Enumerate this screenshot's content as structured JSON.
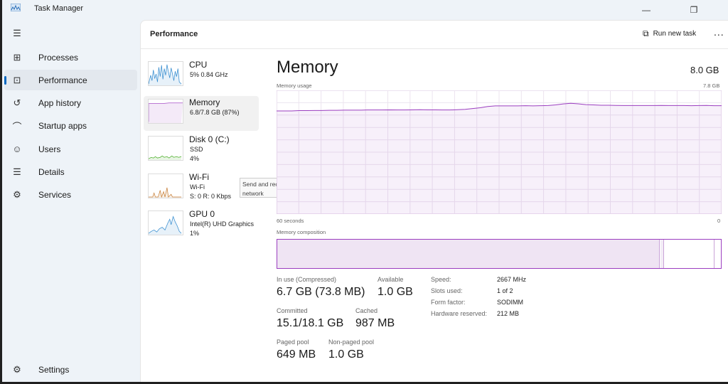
{
  "window": {
    "title": "Task Manager",
    "icon": "task-manager-icon",
    "controls": [
      "minimize-icon",
      "restore-icon"
    ]
  },
  "sidebar": {
    "items": [
      {
        "label": "Processes",
        "icon": "processes-icon",
        "glyph": "⊞"
      },
      {
        "label": "Performance",
        "icon": "performance-icon",
        "glyph": "⊡",
        "selected": true
      },
      {
        "label": "App history",
        "icon": "app-history-icon",
        "glyph": "↺"
      },
      {
        "label": "Startup apps",
        "icon": "startup-apps-icon",
        "glyph": "⌒"
      },
      {
        "label": "Users",
        "icon": "users-icon",
        "glyph": "☺"
      },
      {
        "label": "Details",
        "icon": "details-icon",
        "glyph": "☰"
      },
      {
        "label": "Services",
        "icon": "services-icon",
        "glyph": "⚙"
      }
    ],
    "settings": {
      "label": "Settings",
      "icon": "settings-icon",
      "glyph": "⚙"
    }
  },
  "header": {
    "title": "Performance",
    "run_new_task": "Run new task",
    "more": "..."
  },
  "devices": [
    {
      "name": "CPU",
      "lines": [
        "5%  0.84 GHz"
      ],
      "color": "#3a8fd0"
    },
    {
      "name": "Memory",
      "lines": [
        "6.8/7.8 GB (87%)"
      ],
      "color": "#a64fc6",
      "selected": true
    },
    {
      "name": "Disk 0 (C:)",
      "lines": [
        "SSD",
        "4%"
      ],
      "color": "#4caf2a"
    },
    {
      "name": "Wi-Fi",
      "lines": [
        "Wi-Fi",
        "S: 0  R: 0 Kbps"
      ],
      "color": "#c8803a"
    },
    {
      "name": "GPU 0",
      "lines": [
        "Intel(R) UHD Graphics",
        "1%"
      ],
      "color": "#3a8fd0"
    }
  ],
  "tooltip": "Send and receive activity on this network",
  "memory": {
    "title": "Memory",
    "total": "8.0 GB",
    "usage_label": "Memory usage",
    "usage_max": "7.8 GB",
    "x_left": "60 seconds",
    "x_right": "0",
    "composition_label": "Memory composition",
    "accent": "#9b3ec0",
    "stats": [
      {
        "label": "In use (Compressed)",
        "value": "6.7 GB (73.8 MB)"
      },
      {
        "label": "Available",
        "value": "1.0 GB"
      },
      {
        "label": "Committed",
        "value": "15.1/18.1 GB"
      },
      {
        "label": "Cached",
        "value": "987 MB"
      },
      {
        "label": "Paged pool",
        "value": "649 MB"
      },
      {
        "label": "Non-paged pool",
        "value": "1.0 GB"
      }
    ],
    "hardware": [
      {
        "label": "Speed:",
        "value": "2667 MHz"
      },
      {
        "label": "Slots used:",
        "value": "1 of 2"
      },
      {
        "label": "Form factor:",
        "value": "SODIMM"
      },
      {
        "label": "Hardware reserved:",
        "value": "212 MB"
      }
    ]
  },
  "chart_data": {
    "type": "area",
    "ylim": [
      0,
      7.8
    ],
    "xlabel": "60 seconds",
    "x_range": [
      60,
      0
    ],
    "values": [
      6.5,
      6.5,
      6.5,
      6.52,
      6.52,
      6.53,
      6.53,
      6.54,
      6.54,
      6.55,
      6.55,
      6.55,
      6.56,
      6.56,
      6.56,
      6.57,
      6.56,
      6.56,
      6.57,
      6.58,
      6.57,
      6.57,
      6.56,
      6.56,
      6.58,
      6.6,
      6.65,
      6.7,
      6.78,
      6.82,
      6.82,
      6.82,
      6.82,
      6.83,
      6.82,
      6.83,
      6.84,
      6.88,
      6.94,
      6.98,
      6.95,
      6.9,
      6.88,
      6.86,
      6.86,
      6.85,
      6.84,
      6.84,
      6.84,
      6.84,
      6.84,
      6.85,
      6.84,
      6.84,
      6.84,
      6.83,
      6.84,
      6.85,
      6.83,
      6.83
    ]
  }
}
